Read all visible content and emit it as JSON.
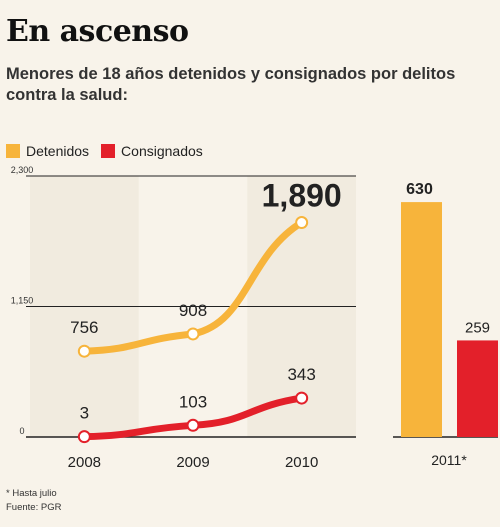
{
  "title": "En ascenso",
  "subtitle": "Menores de 18 años detenidos y consignados por delitos contra la salud:",
  "legend": {
    "detenidos": "Detenidos",
    "consignados": "Consignados"
  },
  "colors": {
    "detenidos": "#f7b43b",
    "consignados": "#e3202a"
  },
  "footnotes": {
    "note": "* Hasta julio",
    "source": "Fuente: PGR"
  },
  "chart_data": [
    {
      "type": "line",
      "x": [
        "2008",
        "2009",
        "2010"
      ],
      "ylim": [
        0,
        2300
      ],
      "yticks": [
        "0",
        "1,150",
        "2,300"
      ],
      "ytick_values": [
        0,
        1150,
        2300
      ],
      "series": [
        {
          "name": "Detenidos",
          "values": [
            756,
            908,
            1890
          ],
          "labels": [
            "756",
            "908",
            "1,890"
          ]
        },
        {
          "name": "Consignados",
          "values": [
            3,
            103,
            343
          ],
          "labels": [
            "3",
            "103",
            "343"
          ]
        }
      ]
    },
    {
      "type": "bar",
      "categories": [
        "2011*"
      ],
      "ylim": [
        0,
        700
      ],
      "series": [
        {
          "name": "Detenidos",
          "values": [
            630
          ],
          "labels": [
            "630"
          ]
        },
        {
          "name": "Consignados",
          "values": [
            259
          ],
          "labels": [
            "259"
          ]
        }
      ]
    }
  ]
}
